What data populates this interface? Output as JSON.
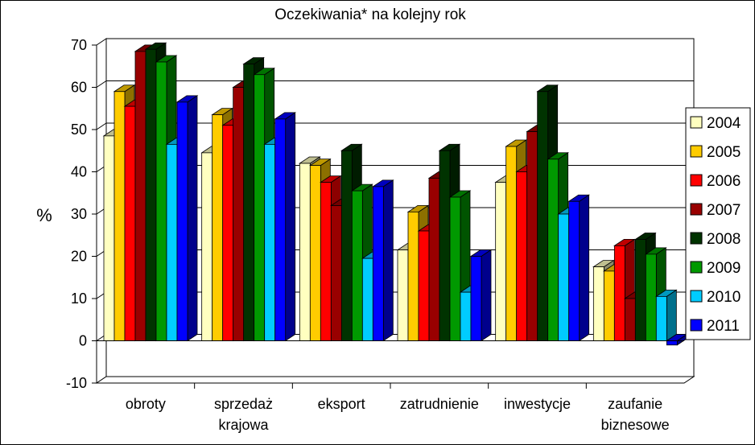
{
  "chart_data": {
    "type": "bar",
    "title": "Oczekiwania* na kolejny rok",
    "xlabel": "",
    "ylabel": "%",
    "ylim": [
      -10,
      70
    ],
    "yticks": [
      70,
      60,
      50,
      40,
      30,
      20,
      10,
      0,
      -10
    ],
    "grid": true,
    "legend_position": "right",
    "categories": [
      [
        "obroty"
      ],
      [
        "sprzedaż",
        "krajowa"
      ],
      [
        "eksport"
      ],
      [
        "zatrudnienie"
      ],
      [
        "inwestycje"
      ],
      [
        "zaufanie",
        "biznesowe"
      ]
    ],
    "series": [
      {
        "name": "2004",
        "color": "#FFFFC0",
        "values": [
          48.5,
          44.5,
          42,
          21.5,
          37.5,
          17.5
        ]
      },
      {
        "name": "2005",
        "color": "#FFCC00",
        "values": [
          59,
          53.5,
          41.5,
          30.5,
          46,
          16.5
        ]
      },
      {
        "name": "2006",
        "color": "#FF0000",
        "values": [
          55.5,
          51,
          37.5,
          26,
          40,
          22.5
        ]
      },
      {
        "name": "2007",
        "color": "#990000",
        "values": [
          68.5,
          60,
          32,
          38.5,
          49.5,
          10
        ]
      },
      {
        "name": "2008",
        "color": "#003300",
        "values": [
          69,
          65.5,
          45,
          45,
          59,
          24
        ]
      },
      {
        "name": "2009",
        "color": "#009900",
        "values": [
          66,
          63,
          35.5,
          34,
          43,
          20.5
        ]
      },
      {
        "name": "2010",
        "color": "#00CCFF",
        "values": [
          46.5,
          46.5,
          19.5,
          11.5,
          30,
          10.5
        ]
      },
      {
        "name": "2011",
        "color": "#0000FF",
        "values": [
          56.5,
          52.5,
          36.5,
          20,
          33,
          -1
        ]
      }
    ]
  }
}
